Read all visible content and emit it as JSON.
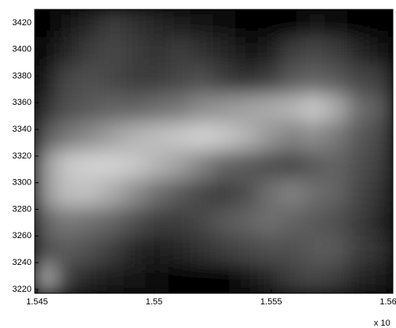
{
  "chart_data": {
    "type": "image",
    "xlim": [
      1.5449,
      1.5602
    ],
    "ylim": [
      3217,
      3430
    ],
    "xticks": [
      1.545,
      1.55,
      1.555,
      1.56
    ],
    "yticks": [
      3220,
      3240,
      3260,
      3280,
      3300,
      3320,
      3340,
      3360,
      3380,
      3400,
      3420
    ],
    "x_exponent_label": "x 10",
    "z": [
      [
        0,
        20,
        40,
        60,
        50,
        40,
        30,
        20,
        10,
        5,
        0,
        0,
        20,
        10,
        5,
        0
      ],
      [
        10,
        40,
        60,
        70,
        60,
        50,
        60,
        50,
        40,
        20,
        30,
        60,
        70,
        60,
        40,
        20
      ],
      [
        30,
        70,
        80,
        70,
        60,
        60,
        70,
        80,
        60,
        50,
        60,
        90,
        100,
        90,
        70,
        60
      ],
      [
        50,
        80,
        90,
        100,
        100,
        110,
        120,
        140,
        150,
        160,
        170,
        180,
        200,
        170,
        110,
        90
      ],
      [
        90,
        120,
        140,
        160,
        180,
        190,
        200,
        210,
        200,
        180,
        150,
        130,
        140,
        120,
        90,
        70
      ],
      [
        150,
        200,
        210,
        210,
        200,
        180,
        160,
        130,
        100,
        90,
        80,
        70,
        90,
        100,
        80,
        60
      ],
      [
        150,
        190,
        190,
        170,
        140,
        110,
        90,
        70,
        60,
        80,
        110,
        130,
        110,
        100,
        70,
        50
      ],
      [
        100,
        120,
        110,
        100,
        80,
        60,
        60,
        70,
        90,
        100,
        110,
        100,
        90,
        80,
        60,
        40
      ],
      [
        80,
        90,
        80,
        60,
        40,
        30,
        40,
        50,
        60,
        70,
        80,
        80,
        90,
        90,
        60,
        50
      ],
      [
        160,
        60,
        40,
        30,
        20,
        10,
        5,
        0,
        0,
        20,
        40,
        60,
        70,
        60,
        40,
        30
      ]
    ]
  }
}
